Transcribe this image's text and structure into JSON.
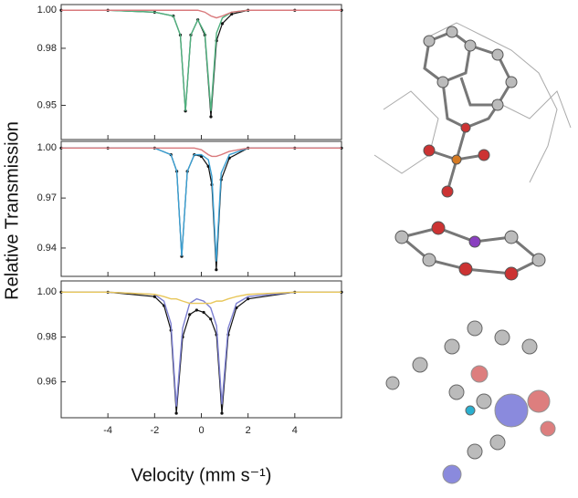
{
  "chart_data": [
    {
      "type": "line",
      "ylabel": "Relative Transmission",
      "xlim": [
        -6,
        6
      ],
      "xticks": [
        -4,
        -2,
        0,
        2,
        4
      ],
      "ylim": [
        0.932,
        1.003
      ],
      "yticks": [
        {
          "value": 1,
          "label": "1.00"
        },
        0.98,
        0.95
      ],
      "x": [
        -6,
        -4,
        -2,
        -1.2,
        -0.9,
        -0.68,
        -0.45,
        -0.15,
        0.15,
        0.41,
        0.65,
        0.9,
        1.3,
        2,
        4,
        6
      ],
      "series": [
        {
          "color": "#111111",
          "values": [
            1,
            1,
            0.999,
            0.997,
            0.987,
            0.947,
            0.987,
            0.995,
            0.987,
            0.944,
            0.984,
            0.993,
            0.998,
            1,
            1,
            1
          ]
        },
        {
          "color": "#4fb07e",
          "values": [
            1,
            1,
            0.999,
            0.997,
            0.987,
            0.947,
            0.987,
            0.995,
            0.988,
            0.947,
            0.988,
            0.996,
            0.999,
            1,
            1,
            1
          ]
        },
        {
          "color": "#d9797c",
          "values": [
            1,
            1,
            1,
            1,
            1,
            1,
            1,
            1,
            0.999,
            0.997,
            0.996,
            0.997,
            0.999,
            1,
            1,
            1
          ]
        }
      ]
    },
    {
      "type": "line",
      "xlim": [
        -6,
        6
      ],
      "xticks": [
        -4,
        -2,
        0,
        2,
        4
      ],
      "ylim": [
        0.923,
        1.004
      ],
      "yticks": [
        {
          "value": 1,
          "label": "1.00"
        },
        0.97,
        0.94
      ],
      "x": [
        -6,
        -4,
        -2,
        -1.3,
        -1.05,
        -0.84,
        -0.6,
        -0.3,
        0,
        0.3,
        0.45,
        0.64,
        0.85,
        1.2,
        2,
        4,
        6
      ],
      "series": [
        {
          "color": "#111111",
          "values": [
            1,
            1,
            1,
            0.996,
            0.986,
            0.935,
            0.986,
            0.996,
            0.995,
            0.989,
            0.978,
            0.927,
            0.981,
            0.994,
            1,
            1,
            1
          ]
        },
        {
          "color": "#3a9fd2",
          "values": [
            1,
            1,
            1,
            0.996,
            0.986,
            0.935,
            0.986,
            0.996,
            0.996,
            0.993,
            0.983,
            0.932,
            0.985,
            0.996,
            1,
            1,
            1
          ]
        },
        {
          "color": "#d9797c",
          "values": [
            1,
            1,
            1,
            1,
            1,
            1,
            1,
            1,
            0.999,
            0.996,
            0.995,
            0.995,
            0.996,
            0.998,
            1,
            1,
            1
          ]
        }
      ]
    },
    {
      "type": "line",
      "xlabel": "Velocity (mm s⁻¹)",
      "xlim": [
        -6,
        6
      ],
      "xticks": [
        -4,
        -2,
        0,
        2,
        4
      ],
      "ylim": [
        0.944,
        1.005
      ],
      "yticks": [
        {
          "value": 1,
          "label": "1.00"
        },
        0.98,
        0.96
      ],
      "x": [
        -6,
        -4,
        -2,
        -1.6,
        -1.3,
        -1.07,
        -0.8,
        -0.5,
        -0.2,
        0.1,
        0.4,
        0.65,
        0.88,
        1.15,
        1.5,
        2,
        4,
        6
      ],
      "series": [
        {
          "color": "#111111",
          "values": [
            1,
            1,
            0.998,
            0.994,
            0.983,
            0.946,
            0.98,
            0.99,
            0.992,
            0.991,
            0.988,
            0.981,
            0.946,
            0.981,
            0.993,
            0.997,
            1,
            1
          ]
        },
        {
          "color": "#7d80d2",
          "values": [
            1,
            1,
            0.999,
            0.996,
            0.986,
            0.949,
            0.984,
            0.995,
            0.997,
            0.996,
            0.993,
            0.985,
            0.95,
            0.984,
            0.995,
            0.998,
            1,
            1
          ]
        },
        {
          "color": "#e8c75c",
          "values": [
            1,
            1,
            0.999,
            0.998,
            0.997,
            0.997,
            0.996,
            0.995,
            0.995,
            0.995,
            0.995,
            0.996,
            0.996,
            0.997,
            0.998,
            0.999,
            1,
            1
          ]
        }
      ]
    }
  ]
}
